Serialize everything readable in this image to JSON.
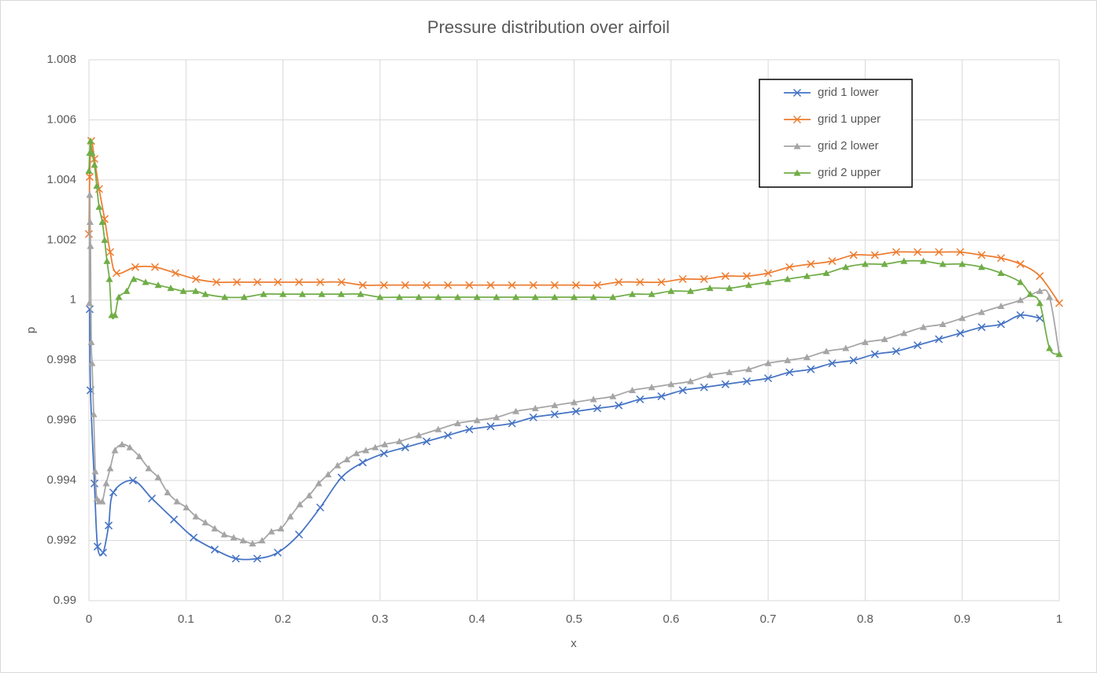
{
  "chart_data": {
    "type": "scatter-smooth",
    "title": "Pressure distribution over airfoil",
    "x_label": "x",
    "y_label": "p",
    "xlim": [
      0,
      1
    ],
    "xticks": [
      0,
      0.1,
      0.2,
      0.3,
      0.4,
      0.5,
      0.6,
      0.7,
      0.8,
      0.9,
      1
    ],
    "ylim": [
      0.99,
      1.008
    ],
    "yticks": [
      0.99,
      0.992,
      0.994,
      0.996,
      0.998,
      1,
      1.002,
      1.004,
      1.006,
      1.008
    ],
    "grid": true,
    "legend": "upper right",
    "series": [
      {
        "name": "grid 1 lower",
        "color": "#4472c4",
        "marker": "x",
        "x": [
          0.0008,
          0.0016,
          0.0057,
          0.0089,
          0.0146,
          0.0203,
          0.0251,
          0.0454,
          0.0649,
          0.0876,
          0.1079,
          0.1297,
          0.1514,
          0.1735,
          0.1946,
          0.2165,
          0.2384,
          0.2603,
          0.2822,
          0.3041,
          0.326,
          0.348,
          0.37,
          0.392,
          0.414,
          0.436,
          0.458,
          0.48,
          0.502,
          0.524,
          0.546,
          0.568,
          0.59,
          0.612,
          0.634,
          0.656,
          0.678,
          0.7,
          0.722,
          0.744,
          0.766,
          0.788,
          0.81,
          0.832,
          0.854,
          0.876,
          0.898,
          0.92,
          0.94,
          0.96,
          0.98
        ],
        "values": [
          0.9997,
          0.997,
          0.9939,
          0.9918,
          0.9916,
          0.9925,
          0.9936,
          0.994,
          0.9934,
          0.9927,
          0.9921,
          0.9917,
          0.9914,
          0.9914,
          0.9916,
          0.9922,
          0.9931,
          0.9941,
          0.9946,
          0.9949,
          0.9951,
          0.9953,
          0.9955,
          0.9957,
          0.9958,
          0.9959,
          0.9961,
          0.9962,
          0.9963,
          0.9964,
          0.9965,
          0.9967,
          0.9968,
          0.997,
          0.9971,
          0.9972,
          0.9973,
          0.9974,
          0.9976,
          0.9977,
          0.9979,
          0.998,
          0.9982,
          0.9983,
          0.9985,
          0.9987,
          0.9989,
          0.9991,
          0.9992,
          0.9995,
          0.9994
        ]
      },
      {
        "name": "grid 1 upper",
        "color": "#ed7d31",
        "marker": "x",
        "x": [
          0,
          0.0008,
          0.0024,
          0.0057,
          0.0105,
          0.0162,
          0.0219,
          0.0284,
          0.0478,
          0.0681,
          0.0892,
          0.1103,
          0.1314,
          0.1525,
          0.1736,
          0.1947,
          0.2165,
          0.2384,
          0.2603,
          0.2822,
          0.3041,
          0.326,
          0.348,
          0.37,
          0.392,
          0.414,
          0.436,
          0.458,
          0.48,
          0.502,
          0.524,
          0.546,
          0.568,
          0.59,
          0.612,
          0.634,
          0.656,
          0.678,
          0.7,
          0.722,
          0.744,
          0.766,
          0.788,
          0.81,
          0.832,
          0.854,
          0.876,
          0.898,
          0.92,
          0.94,
          0.96,
          0.98,
          1
        ],
        "values": [
          1.0022,
          1.0041,
          1.0053,
          1.0047,
          1.0037,
          1.0027,
          1.0016,
          1.0009,
          1.0011,
          1.0011,
          1.0009,
          1.0007,
          1.0006,
          1.0006,
          1.0006,
          1.0006,
          1.0006,
          1.0006,
          1.0006,
          1.0005,
          1.0005,
          1.0005,
          1.0005,
          1.0005,
          1.0005,
          1.0005,
          1.0005,
          1.0005,
          1.0005,
          1.0005,
          1.0005,
          1.0006,
          1.0006,
          1.0006,
          1.0007,
          1.0007,
          1.0008,
          1.0008,
          1.0009,
          1.0011,
          1.0012,
          1.0013,
          1.0015,
          1.0015,
          1.0016,
          1.0016,
          1.0016,
          1.0016,
          1.0015,
          1.0014,
          1.0012,
          1.0008,
          0.9999
        ]
      },
      {
        "name": "grid 2 lower",
        "color": "#a5a5a5",
        "marker": "triangle",
        "x": [
          0.0004,
          0.0008,
          0.0012,
          0.0016,
          0.0024,
          0.0032,
          0.0049,
          0.0065,
          0.0081,
          0.0105,
          0.0138,
          0.0178,
          0.0219,
          0.0268,
          0.0341,
          0.0422,
          0.0519,
          0.0616,
          0.0714,
          0.0811,
          0.0908,
          0.1005,
          0.1103,
          0.12,
          0.1297,
          0.1395,
          0.1492,
          0.1589,
          0.1686,
          0.1784,
          0.1881,
          0.1978,
          0.2076,
          0.2173,
          0.227,
          0.2368,
          0.2465,
          0.2562,
          0.2659,
          0.2757,
          0.2854,
          0.2951,
          0.3049,
          0.32,
          0.34,
          0.36,
          0.38,
          0.4,
          0.42,
          0.44,
          0.46,
          0.48,
          0.5,
          0.52,
          0.54,
          0.56,
          0.58,
          0.6,
          0.62,
          0.64,
          0.66,
          0.68,
          0.7,
          0.72,
          0.74,
          0.76,
          0.78,
          0.8,
          0.82,
          0.84,
          0.86,
          0.88,
          0.9,
          0.92,
          0.94,
          0.96,
          0.98,
          0.99,
          1
        ],
        "values": [
          0.9999,
          1.0035,
          1.0026,
          1.0018,
          0.9986,
          0.9979,
          0.9962,
          0.9943,
          0.9934,
          0.9933,
          0.9933,
          0.9939,
          0.9944,
          0.995,
          0.9952,
          0.9951,
          0.9948,
          0.9944,
          0.9941,
          0.9936,
          0.9933,
          0.9931,
          0.9928,
          0.9926,
          0.9924,
          0.9922,
          0.9921,
          0.992,
          0.9919,
          0.992,
          0.9923,
          0.9924,
          0.9928,
          0.9932,
          0.9935,
          0.9939,
          0.9942,
          0.9945,
          0.9947,
          0.9949,
          0.995,
          0.9951,
          0.9952,
          0.9953,
          0.9955,
          0.9957,
          0.9959,
          0.996,
          0.9961,
          0.9963,
          0.9964,
          0.9965,
          0.9966,
          0.9967,
          0.9968,
          0.997,
          0.9971,
          0.9972,
          0.9973,
          0.9975,
          0.9976,
          0.9977,
          0.9979,
          0.998,
          0.9981,
          0.9983,
          0.9984,
          0.9986,
          0.9987,
          0.9989,
          0.9991,
          0.9992,
          0.9994,
          0.9996,
          0.9998,
          1,
          1.0003,
          1.0001,
          0.9982
        ]
      },
      {
        "name": "grid 2 upper",
        "color": "#70ad47",
        "marker": "triangle",
        "x": [
          0,
          0.0008,
          0.0016,
          0.0032,
          0.0057,
          0.0081,
          0.0105,
          0.0138,
          0.0162,
          0.0186,
          0.0211,
          0.0235,
          0.0268,
          0.0308,
          0.0389,
          0.0462,
          0.0584,
          0.0714,
          0.0843,
          0.0973,
          0.11,
          0.12,
          0.14,
          0.16,
          0.18,
          0.2,
          0.22,
          0.24,
          0.26,
          0.28,
          0.3,
          0.32,
          0.34,
          0.36,
          0.38,
          0.4,
          0.42,
          0.44,
          0.46,
          0.48,
          0.5,
          0.52,
          0.54,
          0.56,
          0.58,
          0.6,
          0.62,
          0.64,
          0.66,
          0.68,
          0.7,
          0.72,
          0.74,
          0.76,
          0.78,
          0.8,
          0.82,
          0.84,
          0.86,
          0.88,
          0.9,
          0.92,
          0.94,
          0.96,
          0.97,
          0.98,
          0.99,
          1
        ],
        "values": [
          1.0043,
          1.0049,
          1.0053,
          1.0049,
          1.0045,
          1.0038,
          1.0031,
          1.0026,
          1.002,
          1.0013,
          1.0007,
          0.9995,
          0.9995,
          1.0001,
          1.0003,
          1.0007,
          1.0006,
          1.0005,
          1.0004,
          1.0003,
          1.0003,
          1.0002,
          1.0001,
          1.0001,
          1.0002,
          1.0002,
          1.0002,
          1.0002,
          1.0002,
          1.0002,
          1.0001,
          1.0001,
          1.0001,
          1.0001,
          1.0001,
          1.0001,
          1.0001,
          1.0001,
          1.0001,
          1.0001,
          1.0001,
          1.0001,
          1.0001,
          1.0002,
          1.0002,
          1.0003,
          1.0003,
          1.0004,
          1.0004,
          1.0005,
          1.0006,
          1.0007,
          1.0008,
          1.0009,
          1.0011,
          1.0012,
          1.0012,
          1.0013,
          1.0013,
          1.0012,
          1.0012,
          1.0011,
          1.0009,
          1.0006,
          1.0002,
          0.9999,
          0.9984,
          0.9982
        ]
      }
    ]
  }
}
